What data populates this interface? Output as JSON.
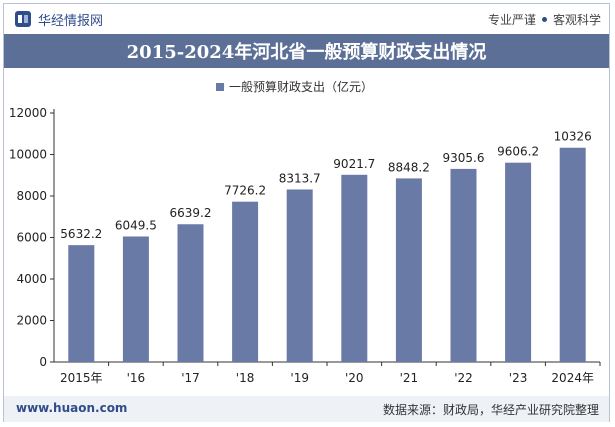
{
  "header": {
    "brand": "华经情报网",
    "tagline_left": "专业严谨",
    "tagline_right": "客观科学"
  },
  "title": "2015-2024年河北省一般预算财政支出情况",
  "colors": {
    "bar": "#6a7aa6",
    "titlebar": "#5c6f96",
    "brand": "#2f4d8a"
  },
  "chart_data": {
    "type": "bar",
    "categories": [
      "2015年",
      "'16",
      "'17",
      "'18",
      "'19",
      "'20",
      "'21",
      "'22",
      "'23",
      "2024年"
    ],
    "series": [
      {
        "name": "一般预算财政支出（亿元）",
        "values": [
          5632.2,
          6049.5,
          6639.2,
          7726.2,
          8313.7,
          9021.7,
          8848.2,
          9305.6,
          9606.2,
          10326
        ]
      }
    ],
    "data_labels": [
      "5632.2",
      "6049.5",
      "6639.2",
      "7726.2",
      "8313.7",
      "9021.7",
      "8848.2",
      "9305.6",
      "9606.2",
      "10326"
    ],
    "y_ticks": [
      "0",
      "2000",
      "4000",
      "6000",
      "8000",
      "10000",
      "12000"
    ],
    "ylim": [
      0,
      12000
    ],
    "legend_position": "top-center",
    "grid": false
  },
  "footer": {
    "site": "www.huaon.com",
    "source": "数据来源：财政局，华经产业研究院整理"
  }
}
